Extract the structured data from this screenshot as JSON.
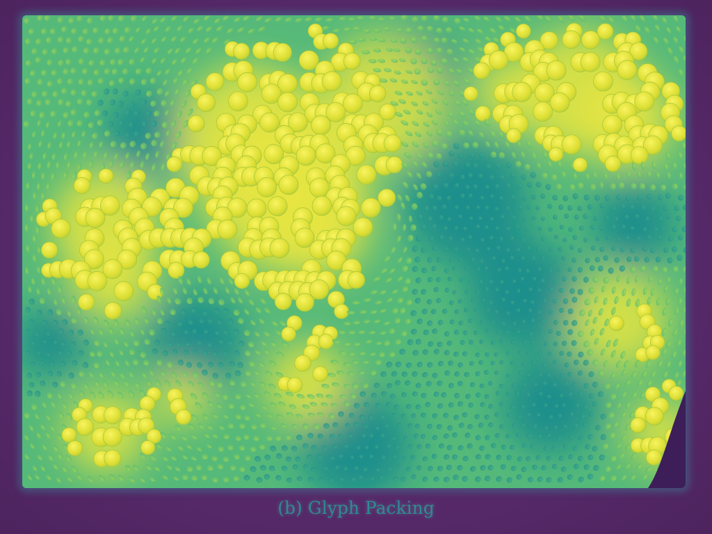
{
  "figure": {
    "caption": "(b)  Glyph Packing"
  },
  "colors": {
    "background": "#5a2a6e",
    "field_low": "#1f8f8c",
    "field_mid": "#4fbf7a",
    "field_high": "#e8e640",
    "glyph_highlight": "#f4f050"
  },
  "visualization": {
    "type": "glyph-packing",
    "colormap": "viridis"
  }
}
